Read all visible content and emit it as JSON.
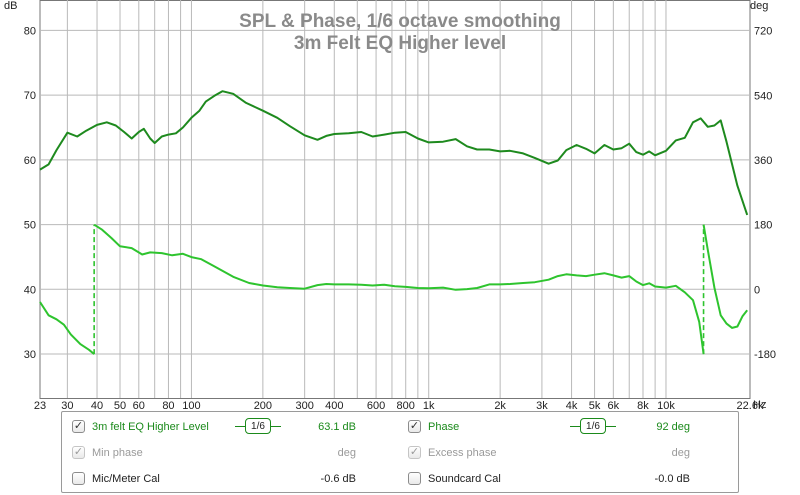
{
  "chart_data": {
    "type": "line",
    "title": "SPL & Phase, 1/6 octave smoothing",
    "subtitle": "3m Felt EQ Higher level",
    "xscale": "log",
    "xlim": [
      23,
      22600
    ],
    "x_ticks": [
      {
        "v": 23,
        "label": "23"
      },
      {
        "v": 30,
        "label": "30"
      },
      {
        "v": 40,
        "label": "40"
      },
      {
        "v": 50,
        "label": "50"
      },
      {
        "v": 60,
        "label": "60"
      },
      {
        "v": 80,
        "label": "80"
      },
      {
        "v": 100,
        "label": "100"
      },
      {
        "v": 200,
        "label": "200"
      },
      {
        "v": 300,
        "label": "300"
      },
      {
        "v": 400,
        "label": "400"
      },
      {
        "v": 600,
        "label": "600"
      },
      {
        "v": 800,
        "label": "800"
      },
      {
        "v": 1000,
        "label": "1k"
      },
      {
        "v": 2000,
        "label": "2k"
      },
      {
        "v": 3000,
        "label": "3k"
      },
      {
        "v": 4000,
        "label": "4k"
      },
      {
        "v": 5000,
        "label": "5k"
      },
      {
        "v": 6000,
        "label": "6k"
      },
      {
        "v": 8000,
        "label": "8k"
      },
      {
        "v": 10000,
        "label": "10k"
      },
      {
        "v": 22600,
        "label": "22.6k"
      }
    ],
    "x_minor": [
      70,
      90,
      500,
      700,
      900,
      7000,
      9000
    ],
    "x_unit": "Hz",
    "y_left": {
      "unit": "dB",
      "ylim": [
        23.2,
        84.7
      ],
      "ticks": [
        30,
        40,
        50,
        60,
        70,
        80
      ]
    },
    "y_right": {
      "unit": "deg",
      "ylim": [
        -302,
        805
      ],
      "ticks": [
        -180,
        0,
        180,
        360,
        540,
        720
      ]
    },
    "grid": true,
    "series": [
      {
        "name": "3m felt EQ Higher Level",
        "axis": "left",
        "color": "#1e8a1e",
        "points": [
          [
            23,
            58.5
          ],
          [
            25,
            59.3
          ],
          [
            27,
            61.5
          ],
          [
            30,
            64.2
          ],
          [
            33,
            63.6
          ],
          [
            36,
            64.5
          ],
          [
            40,
            65.4
          ],
          [
            44,
            65.8
          ],
          [
            48,
            65.3
          ],
          [
            52,
            64.3
          ],
          [
            56,
            63.3
          ],
          [
            60,
            64.3
          ],
          [
            63,
            64.8
          ],
          [
            67,
            63.3
          ],
          [
            70,
            62.6
          ],
          [
            75,
            63.6
          ],
          [
            80,
            63.9
          ],
          [
            86,
            64.1
          ],
          [
            92,
            65.0
          ],
          [
            100,
            66.5
          ],
          [
            108,
            67.6
          ],
          [
            115,
            69.0
          ],
          [
            125,
            69.9
          ],
          [
            135,
            70.6
          ],
          [
            150,
            70.2
          ],
          [
            170,
            68.8
          ],
          [
            200,
            67.6
          ],
          [
            230,
            66.5
          ],
          [
            260,
            65.2
          ],
          [
            300,
            63.8
          ],
          [
            340,
            63.1
          ],
          [
            370,
            63.7
          ],
          [
            400,
            64.0
          ],
          [
            460,
            64.1
          ],
          [
            520,
            64.3
          ],
          [
            580,
            63.6
          ],
          [
            650,
            63.9
          ],
          [
            720,
            64.2
          ],
          [
            800,
            64.3
          ],
          [
            900,
            63.3
          ],
          [
            1000,
            62.7
          ],
          [
            1150,
            62.8
          ],
          [
            1300,
            63.2
          ],
          [
            1450,
            62.1
          ],
          [
            1600,
            61.6
          ],
          [
            1800,
            61.6
          ],
          [
            2000,
            61.3
          ],
          [
            2200,
            61.4
          ],
          [
            2500,
            61.0
          ],
          [
            2800,
            60.3
          ],
          [
            3200,
            59.4
          ],
          [
            3500,
            59.9
          ],
          [
            3800,
            61.5
          ],
          [
            4200,
            62.3
          ],
          [
            4600,
            61.7
          ],
          [
            5000,
            61.0
          ],
          [
            5500,
            62.3
          ],
          [
            6000,
            61.6
          ],
          [
            6500,
            61.8
          ],
          [
            7000,
            62.5
          ],
          [
            7500,
            61.2
          ],
          [
            8000,
            60.8
          ],
          [
            8500,
            61.3
          ],
          [
            9000,
            60.7
          ],
          [
            10000,
            61.4
          ],
          [
            11000,
            63.0
          ],
          [
            12000,
            63.4
          ],
          [
            13000,
            65.8
          ],
          [
            14000,
            66.4
          ],
          [
            15000,
            65.1
          ],
          [
            16000,
            65.3
          ],
          [
            17000,
            66.1
          ],
          [
            18000,
            62.8
          ],
          [
            20000,
            56.0
          ],
          [
            22000,
            51.5
          ]
        ]
      },
      {
        "name": "Phase",
        "axis": "right",
        "color": "#2ec42e",
        "points": [
          [
            23,
            -35
          ],
          [
            25,
            -72
          ],
          [
            27,
            -83
          ],
          [
            29,
            -98
          ],
          [
            31,
            -125
          ],
          [
            34,
            -152
          ],
          [
            37,
            -168
          ],
          [
            38.9,
            -180
          ],
          [
            38.9,
            180
          ],
          [
            42,
            166
          ],
          [
            46,
            143
          ],
          [
            50,
            120
          ],
          [
            56,
            115
          ],
          [
            62,
            97
          ],
          [
            67,
            103
          ],
          [
            75,
            101
          ],
          [
            83,
            95
          ],
          [
            92,
            99
          ],
          [
            100,
            90
          ],
          [
            110,
            84
          ],
          [
            125,
            64
          ],
          [
            150,
            35
          ],
          [
            175,
            18
          ],
          [
            200,
            11
          ],
          [
            230,
            6
          ],
          [
            260,
            4
          ],
          [
            300,
            2
          ],
          [
            340,
            12
          ],
          [
            370,
            15
          ],
          [
            400,
            14
          ],
          [
            460,
            14
          ],
          [
            520,
            13
          ],
          [
            580,
            11
          ],
          [
            650,
            13
          ],
          [
            720,
            9
          ],
          [
            800,
            7
          ],
          [
            900,
            4
          ],
          [
            1000,
            3
          ],
          [
            1150,
            5
          ],
          [
            1300,
            -1
          ],
          [
            1450,
            1
          ],
          [
            1600,
            4
          ],
          [
            1800,
            14
          ],
          [
            2000,
            14
          ],
          [
            2200,
            15
          ],
          [
            2500,
            18
          ],
          [
            2800,
            20
          ],
          [
            3200,
            27
          ],
          [
            3500,
            37
          ],
          [
            3800,
            42
          ],
          [
            4200,
            39
          ],
          [
            4600,
            37
          ],
          [
            5000,
            41
          ],
          [
            5500,
            45
          ],
          [
            6000,
            39
          ],
          [
            6500,
            33
          ],
          [
            7000,
            37
          ],
          [
            7500,
            22
          ],
          [
            8000,
            12
          ],
          [
            8500,
            17
          ],
          [
            9000,
            8
          ],
          [
            10000,
            5
          ],
          [
            11000,
            10
          ],
          [
            12000,
            -8
          ],
          [
            13000,
            -30
          ],
          [
            13800,
            -90
          ],
          [
            14400,
            -180
          ],
          [
            14400,
            180
          ],
          [
            15000,
            110
          ],
          [
            16000,
            5
          ],
          [
            17000,
            -72
          ],
          [
            18000,
            -95
          ],
          [
            19000,
            -107
          ],
          [
            20000,
            -103
          ],
          [
            21000,
            -75
          ],
          [
            22000,
            -58
          ]
        ]
      }
    ]
  },
  "legend": {
    "rows": [
      {
        "left": {
          "checked": true,
          "enabled": true,
          "label": "3m felt EQ Higher Level",
          "smoothing": "1/6",
          "value": "63.1 dB"
        },
        "right": {
          "checked": true,
          "enabled": true,
          "label": "Phase",
          "smoothing": "1/6",
          "value": "92 deg"
        }
      },
      {
        "left": {
          "checked": true,
          "enabled": false,
          "label": "Min phase",
          "value": "deg"
        },
        "right": {
          "checked": true,
          "enabled": false,
          "label": "Excess phase",
          "value": "deg"
        }
      },
      {
        "left": {
          "checked": false,
          "enabled": true,
          "label": "Mic/Meter Cal",
          "value": "-0.6 dB"
        },
        "right": {
          "checked": false,
          "enabled": true,
          "label": "Soundcard Cal",
          "value": "-0.0 dB"
        }
      }
    ]
  },
  "colors": {
    "spl": "#1e8a1e",
    "phase": "#2ec42e",
    "legend_text": "#1b8a1b",
    "grid": "#b9b9b9"
  }
}
